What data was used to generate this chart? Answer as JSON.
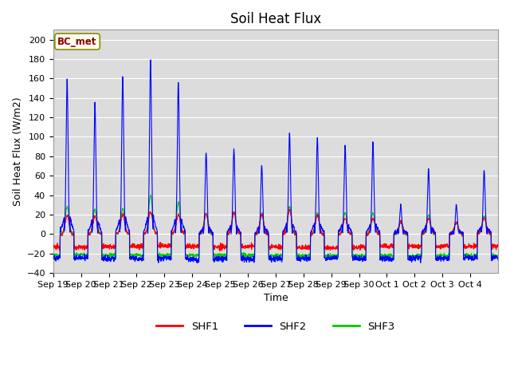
{
  "title": "Soil Heat Flux",
  "ylabel": "Soil Heat Flux (W/m2)",
  "xlabel": "Time",
  "ylim": [
    -40,
    210
  ],
  "yticks": [
    -40,
    -20,
    0,
    20,
    40,
    60,
    80,
    100,
    120,
    140,
    160,
    180,
    200
  ],
  "fig_bg_color": "#ffffff",
  "plot_bg_color": "#dcdcdc",
  "grid_color": "#ffffff",
  "shf1_color": "#ff0000",
  "shf2_color": "#0000ff",
  "shf3_color": "#00cc00",
  "legend_label1": "SHF1",
  "legend_label2": "SHF2",
  "legend_label3": "SHF3",
  "annotation_text": "BC_met",
  "annotation_color": "#8B0000",
  "annotation_bg": "#fffff0",
  "annotation_edge": "#8B8B00",
  "xtick_labels": [
    "Sep 19",
    "Sep 20",
    "Sep 21",
    "Sep 22",
    "Sep 23",
    "Sep 24",
    "Sep 25",
    "Sep 26",
    "Sep 27",
    "Sep 28",
    "Sep 29",
    "Sep 30",
    "Oct 1",
    "Oct 2",
    "Oct 3",
    "Oct 4"
  ],
  "n_days": 16,
  "pts_per_day": 144,
  "title_fontsize": 12,
  "axis_label_fontsize": 9,
  "tick_fontsize": 8,
  "shf2_peaks": [
    157,
    135,
    163,
    180,
    157,
    85,
    88,
    71,
    103,
    99,
    90,
    93,
    30,
    67,
    30,
    64
  ],
  "shf3_peaks": [
    28,
    25,
    26,
    40,
    32,
    22,
    22,
    22,
    28,
    22,
    22,
    22,
    14,
    20,
    12,
    18
  ],
  "shf1_peaks": [
    20,
    18,
    20,
    22,
    20,
    20,
    22,
    20,
    25,
    20,
    17,
    17,
    12,
    16,
    12,
    16
  ]
}
